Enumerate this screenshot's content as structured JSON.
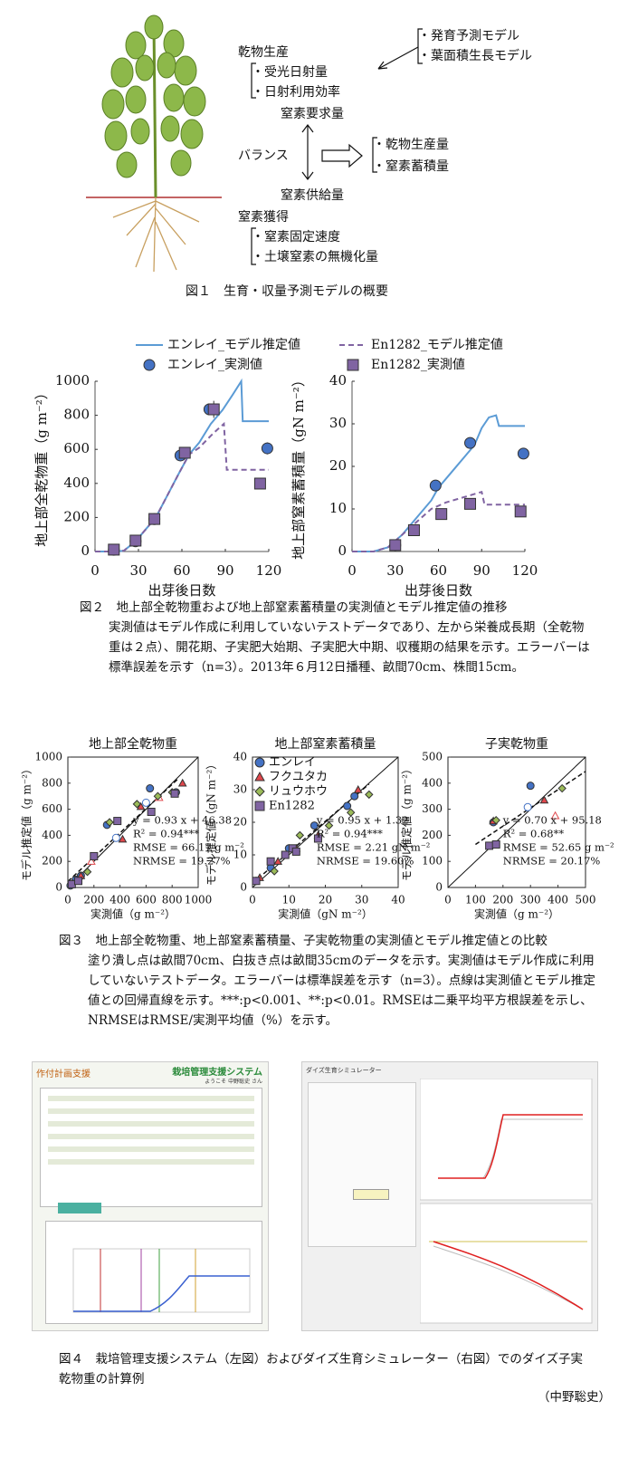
{
  "figure1": {
    "labels": [
      "乾物生産",
      "・受光日射量",
      "・日射利用効率",
      "窒素要求量",
      "バランス",
      "窒素供給量",
      "窒素獲得",
      "・窒素固定速度",
      "・土壌窒素の無機化量",
      "・発育予測モデル",
      "・葉面積生長モデル",
      "・乾物生産量",
      "・窒素蓄積量"
    ],
    "caption": "図１　生育・収量予測モデルの概要"
  },
  "chart_data": [
    {
      "type": "line",
      "ylabel": "地上部全乾物重（g m⁻²）",
      "xlabel": "出芽後日数",
      "xlim": [
        0,
        120
      ],
      "xticks": [
        0,
        30,
        60,
        90,
        120
      ],
      "ylim": [
        0,
        1000
      ],
      "yticks": [
        0,
        200,
        400,
        600,
        800,
        1000
      ],
      "frame": false,
      "legend": true,
      "series": [
        {
          "name": "エンレイ_モデル推定値",
          "color": "#5b9bd5",
          "style": "solid",
          "x": [
            0,
            15,
            20,
            28,
            35,
            42,
            50,
            58,
            65,
            72,
            80,
            88,
            95,
            101,
            102,
            120
          ],
          "values": [
            0,
            0,
            5,
            60,
            130,
            200,
            330,
            460,
            570,
            640,
            750,
            830,
            920,
            1000,
            765,
            765
          ]
        },
        {
          "name": "En1282_モデル推定値",
          "color": "#8064a2",
          "style": "dashed",
          "x": [
            0,
            15,
            20,
            28,
            35,
            42,
            50,
            58,
            65,
            72,
            80,
            85,
            89,
            91,
            120
          ],
          "values": [
            0,
            0,
            5,
            60,
            130,
            200,
            330,
            460,
            570,
            610,
            680,
            720,
            750,
            480,
            480
          ]
        },
        {
          "name": "エンレイ_実測値",
          "color": "#4472c4",
          "marker": "circle",
          "x": [
            13,
            28,
            41,
            59,
            79,
            119
          ],
          "values": [
            10,
            60,
            190,
            564,
            835,
            606
          ],
          "errors": [
            3,
            8,
            15,
            10,
            30,
            35
          ]
        },
        {
          "name": "En1282_実測値",
          "color": "#8064a2",
          "marker": "square",
          "x": [
            13,
            28,
            41,
            62,
            82,
            114
          ],
          "values": [
            11,
            64,
            191,
            580,
            835,
            399
          ],
          "errors": [
            3,
            8,
            15,
            10,
            50,
            20
          ]
        }
      ]
    },
    {
      "type": "line",
      "ylabel": "地上部窒素蓄積量（gN m⁻²）",
      "xlabel": "出芽後日数",
      "xlim": [
        0,
        120
      ],
      "xticks": [
        0,
        30,
        60,
        90,
        120
      ],
      "ylim": [
        0,
        40
      ],
      "yticks": [
        0,
        10,
        20,
        30,
        40
      ],
      "frame": false,
      "series": [
        {
          "color": "#5b9bd5",
          "style": "solid",
          "x": [
            0,
            15,
            25,
            35,
            45,
            55,
            60,
            70,
            80,
            85,
            90,
            95,
            100,
            102,
            120
          ],
          "values": [
            0,
            0,
            1,
            4,
            8,
            12,
            15,
            19,
            23,
            25,
            29,
            31.5,
            32,
            29.5,
            29.5
          ]
        },
        {
          "color": "#8064a2",
          "style": "dashed",
          "x": [
            0,
            15,
            25,
            35,
            45,
            55,
            65,
            75,
            90,
            92,
            120
          ],
          "values": [
            0,
            0,
            1,
            4,
            7,
            10,
            11.5,
            12.5,
            14,
            11,
            11
          ]
        },
        {
          "color": "#4472c4",
          "marker": "circle",
          "x": [
            30,
            58,
            82,
            119
          ],
          "values": [
            1.5,
            15.5,
            25.5,
            23
          ],
          "errors": [
            0.3,
            0.6,
            0.8,
            1
          ]
        },
        {
          "color": "#8064a2",
          "marker": "square",
          "x": [
            30,
            43,
            62,
            82,
            117
          ],
          "values": [
            1.5,
            5,
            8.8,
            11.2,
            9.4
          ],
          "errors": [
            0.3,
            0.4,
            0.5,
            0.6,
            0.5
          ]
        }
      ]
    },
    {
      "type": "scatter",
      "title": "地上部全乾物重",
      "ylabel": "モデル推定値（g m⁻²）",
      "xlabel": "実測値（g m⁻²）",
      "xlim": [
        0,
        1000
      ],
      "xticks": [
        0,
        200,
        400,
        600,
        800,
        1000
      ],
      "ylim": [
        0,
        1000
      ],
      "yticks": [
        0,
        200,
        400,
        600,
        800,
        1000
      ],
      "frame": true,
      "annotations": [
        "y = 0.93 x + 46.38",
        "R² = 0.94***",
        "RMSE = 66.17 g m⁻²",
        "NRMSE = 19.27%"
      ],
      "lines": [
        {
          "x": [
            0,
            1000
          ],
          "values": [
            0,
            1000
          ]
        },
        {
          "x": [
            0,
            850
          ],
          "values": [
            46,
            837
          ],
          "dashed": true
        }
      ],
      "series": [
        {
          "color": "#4472c4",
          "marker": "circle",
          "x": [
            20,
            60,
            100,
            300,
            370,
            630,
            600,
            830
          ],
          "values": [
            15,
            60,
            90,
            480,
            380,
            760,
            650,
            730
          ],
          "filled": [
            true,
            true,
            true,
            true,
            false,
            true,
            false,
            true
          ]
        },
        {
          "color": "#e0474c",
          "marker": "triangle",
          "x": [
            100,
            180,
            420,
            560,
            700,
            880
          ],
          "values": [
            90,
            200,
            370,
            620,
            690,
            800
          ],
          "filled": [
            true,
            false,
            true,
            true,
            false,
            true
          ]
        },
        {
          "color": "#9bbb59",
          "marker": "diamond",
          "x": [
            40,
            150,
            320,
            530,
            690,
            800
          ],
          "values": [
            30,
            120,
            500,
            640,
            700,
            730
          ],
          "filled": [
            true,
            true,
            true,
            true,
            true,
            true
          ]
        },
        {
          "color": "#8064a2",
          "marker": "square",
          "x": [
            30,
            80,
            200,
            380,
            640,
            820
          ],
          "values": [
            25,
            50,
            240,
            510,
            580,
            720
          ],
          "filled": [
            true,
            true,
            true,
            true,
            true,
            true
          ]
        }
      ]
    },
    {
      "type": "scatter",
      "title": "地上部窒素蓄積量",
      "ylabel": "モデル推定値（gN m⁻²）",
      "xlabel": "実測値（gN m⁻²）",
      "xlim": [
        0,
        40
      ],
      "xticks": [
        0,
        10,
        20,
        30,
        40
      ],
      "ylim": [
        0,
        40
      ],
      "yticks": [
        0,
        10,
        20,
        30,
        40
      ],
      "frame": true,
      "legend": true,
      "annotations": [
        "y = 0.95 x + 1.32",
        "R² = 0.94***",
        "RMSE = 2.21 gN m⁻²",
        "NRMSE = 19.60%"
      ],
      "lines": [
        {
          "x": [
            0,
            40
          ],
          "values": [
            0,
            40
          ]
        },
        {
          "x": [
            0,
            32
          ],
          "values": [
            1.3,
            31.7
          ],
          "dashed": true
        }
      ],
      "series": [
        {
          "name": "エンレイ",
          "color": "#4472c4",
          "marker": "circle",
          "x": [
            1,
            5,
            10,
            17,
            26,
            28
          ],
          "values": [
            2,
            6,
            12,
            19,
            25,
            28
          ],
          "filled": [
            true,
            true,
            true,
            true,
            true,
            true
          ]
        },
        {
          "name": "フクユタカ",
          "color": "#e0474c",
          "marker": "triangle",
          "x": [
            2,
            7,
            12,
            18,
            29
          ],
          "values": [
            3,
            8,
            12,
            16,
            30
          ],
          "filled": [
            true,
            true,
            true,
            true,
            true
          ]
        },
        {
          "name": "リュウホウ",
          "color": "#9bbb59",
          "marker": "diamond",
          "x": [
            1,
            6,
            13,
            21,
            27,
            32
          ],
          "values": [
            2,
            5,
            16,
            19,
            23,
            28.5
          ],
          "filled": [
            true,
            true,
            true,
            true,
            true,
            true
          ]
        },
        {
          "name": "En1282",
          "color": "#8064a2",
          "marker": "square",
          "x": [
            1,
            5,
            9,
            11,
            12,
            18
          ],
          "values": [
            2,
            8,
            10,
            12,
            11,
            15
          ],
          "filled": [
            true,
            true,
            true,
            true,
            true,
            true
          ]
        }
      ]
    },
    {
      "type": "scatter",
      "title": "子実乾物重",
      "ylabel": "モデル推定値（g m⁻²）",
      "xlabel": "実測値（g m⁻²）",
      "xlim": [
        0,
        500
      ],
      "xticks": [
        0,
        100,
        200,
        300,
        400,
        500
      ],
      "ylim": [
        0,
        500
      ],
      "yticks": [
        0,
        100,
        200,
        300,
        400,
        500
      ],
      "frame": true,
      "annotations": [
        "y = 0.70 x + 95.18",
        "R² = 0.68**",
        "RMSE = 52.65 g m⁻²",
        "NRMSE = 20.17%"
      ],
      "lines": [
        {
          "x": [
            0,
            500
          ],
          "values": [
            0,
            500
          ]
        },
        {
          "x": [
            100,
            500
          ],
          "values": [
            165,
            445
          ],
          "dashed": true
        }
      ],
      "series": [
        {
          "color": "#4472c4",
          "marker": "circle",
          "x": [
            300,
            290,
            165
          ],
          "values": [
            390,
            308,
            250
          ],
          "filled": [
            true,
            false,
            true
          ]
        },
        {
          "color": "#e0474c",
          "marker": "triangle",
          "x": [
            350,
            390,
            165
          ],
          "values": [
            335,
            275,
            255
          ],
          "filled": [
            true,
            false,
            true
          ]
        },
        {
          "color": "#9bbb59",
          "marker": "diamond",
          "x": [
            415,
            175
          ],
          "values": [
            380,
            258
          ],
          "filled": [
            true,
            true
          ]
        },
        {
          "color": "#8064a2",
          "marker": "square",
          "x": [
            150,
            175
          ],
          "values": [
            160,
            165
          ],
          "filled": [
            true,
            true
          ]
        }
      ]
    }
  ],
  "figure2": {
    "caption_title": "図２　地上部全乾物重および地上部窒素蓄積量の実測値とモデル推定値の推移",
    "caption_body": "実測値はモデル作成に利用していないテストデータであり、左から栄養成長期（全乾物重は２点）、開花期、子実肥大始期、子実肥大中期、収穫期の結果を示す。エラーバーは標準誤差を示す（n=3）。2013年６月12日播種、畝間70cm、株間15cm。"
  },
  "figure3": {
    "caption_title": "図３　地上部全乾物重、地上部窒素蓄積量、子実乾物重の実測値とモデル推定値との比較",
    "caption_body": "塗り潰し点は畝間70cm、白抜き点は畝間35cmのデータを示す。実測値はモデル作成に利用していないテストデータ。エラーバーは標準誤差を示す（n=3）。点線は実測値とモデル推定値との回帰直線を示す。***:p<0.001、**:p<0.01。RMSEは二乗平均平方根誤差を示し、NRMSEはRMSE/実測平均値（%）を示す。"
  },
  "figure4": {
    "left_title": "作付計画支援",
    "left_system": "栽培管理支援システム",
    "left_welcome": "ようこそ 中野聡史 さん",
    "right_title": "ダイズ生育シミュレーター",
    "caption": "図４　栽培管理支援システム（左図）およびダイズ生育シミュレーター（右図）でのダイズ子実乾物重の計算例"
  },
  "author": "（中野聡史）"
}
